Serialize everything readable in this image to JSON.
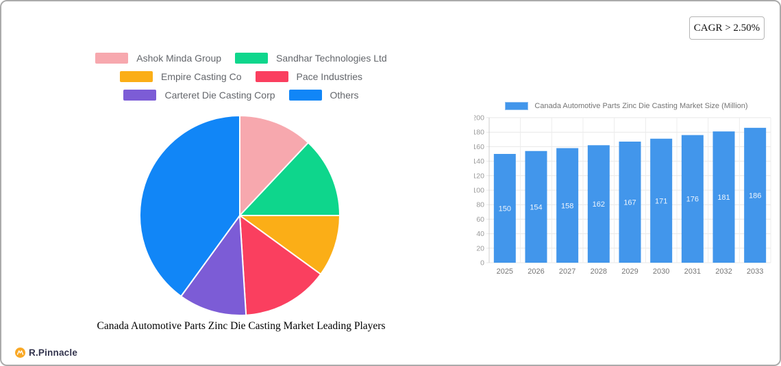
{
  "cagr": {
    "label": "CAGR > 2.50%"
  },
  "logo": {
    "text": "R.Pinnacle"
  },
  "chart_data": [
    {
      "type": "pie",
      "title": "Canada Automotive Parts Zinc Die Casting Market Leading Players",
      "legend_position": "top",
      "slices": [
        {
          "label": "Ashok Minda Group",
          "value": 12,
          "color": "#F7A8AE"
        },
        {
          "label": "Sandhar Technologies Ltd",
          "value": 13,
          "color": "#0ED68C"
        },
        {
          "label": "Empire Casting Co",
          "value": 10,
          "color": "#FBAE17"
        },
        {
          "label": "Pace Industries",
          "value": 14,
          "color": "#FA3F5F"
        },
        {
          "label": "Carteret Die Casting Corp",
          "value": 11,
          "color": "#7C5CD6"
        },
        {
          "label": "Others",
          "value": 40,
          "color": "#1186F7"
        }
      ]
    },
    {
      "type": "bar",
      "title": "Canada Automotive Parts Zinc Die Casting Market Size (Million)",
      "categories": [
        "2025",
        "2026",
        "2027",
        "2028",
        "2029",
        "2030",
        "2031",
        "2032",
        "2033"
      ],
      "values": [
        150,
        154,
        158,
        162,
        167,
        171,
        176,
        181,
        186
      ],
      "xlabel": "",
      "ylabel": "",
      "ylim": [
        0,
        200
      ],
      "ytick_step": 20,
      "bar_color": "#4296EB",
      "grid": true,
      "legend_position": "top"
    }
  ]
}
